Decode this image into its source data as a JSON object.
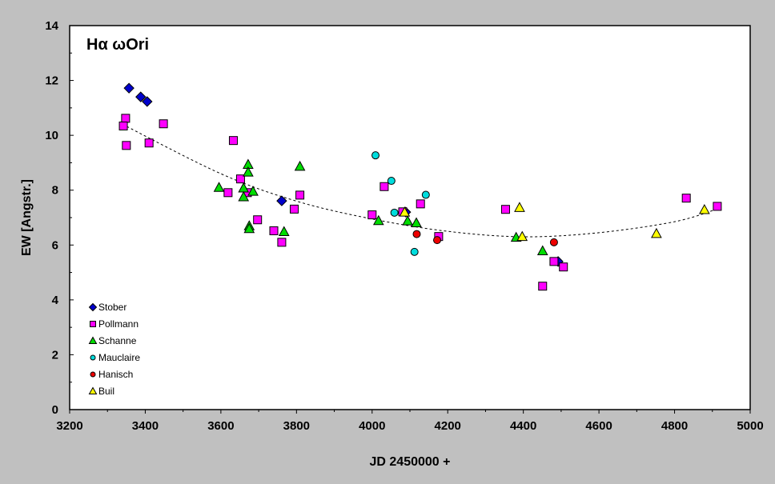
{
  "chart_data": {
    "type": "scatter",
    "title": "Hα ωOri",
    "xlabel": "JD 2450000 +",
    "ylabel": "EW [Angstr.]",
    "xlim": [
      3200,
      5000
    ],
    "ylim": [
      0,
      14
    ],
    "xticks": [
      3200,
      3400,
      3600,
      3800,
      4000,
      4200,
      4400,
      4600,
      4800,
      5000
    ],
    "yticks": [
      0,
      2,
      4,
      6,
      8,
      10,
      12,
      14
    ],
    "grid": false,
    "legend_position": "bottom-left",
    "background": "#c0c0c0",
    "plot_background": "#ffffff",
    "series": [
      {
        "name": "Stober",
        "marker": "diamond",
        "color": "#0000cc",
        "points": [
          [
            3357,
            11.72
          ],
          [
            3388,
            11.4
          ],
          [
            3405,
            11.23
          ],
          [
            3761,
            7.61
          ],
          [
            4089,
            7.2
          ],
          [
            4492,
            5.4
          ]
        ]
      },
      {
        "name": "Pollmann",
        "marker": "square",
        "color": "#ff00ff",
        "points": [
          [
            3348,
            10.62
          ],
          [
            3342,
            10.34
          ],
          [
            3350,
            9.63
          ],
          [
            3410,
            9.72
          ],
          [
            3448,
            10.42
          ],
          [
            3633,
            9.81
          ],
          [
            3652,
            8.41
          ],
          [
            3619,
            7.91
          ],
          [
            3670,
            7.91
          ],
          [
            3697,
            6.92
          ],
          [
            3740,
            6.52
          ],
          [
            3761,
            6.1
          ],
          [
            3794,
            7.31
          ],
          [
            3809,
            7.82
          ],
          [
            4000,
            7.1
          ],
          [
            4032,
            8.13
          ],
          [
            4081,
            7.21
          ],
          [
            4128,
            7.5
          ],
          [
            4176,
            6.31
          ],
          [
            4353,
            7.3
          ],
          [
            4481,
            5.4
          ],
          [
            4506,
            5.2
          ],
          [
            4451,
            4.5
          ],
          [
            4831,
            7.71
          ],
          [
            4913,
            7.41
          ]
        ]
      },
      {
        "name": "Schanne",
        "marker": "triangle",
        "color": "#00dd00",
        "points": [
          [
            3595,
            8.1
          ],
          [
            3672,
            8.94
          ],
          [
            3672,
            8.66
          ],
          [
            3660,
            8.08
          ],
          [
            3685,
            7.96
          ],
          [
            3660,
            7.76
          ],
          [
            3675,
            6.7
          ],
          [
            3675,
            6.6
          ],
          [
            3767,
            6.49
          ],
          [
            3809,
            8.87
          ],
          [
            4017,
            6.89
          ],
          [
            4094,
            6.88
          ],
          [
            4117,
            6.81
          ],
          [
            4381,
            6.28
          ],
          [
            4451,
            5.79
          ]
        ]
      },
      {
        "name": "Mauclaire",
        "marker": "circle",
        "color": "#00dddd",
        "points": [
          [
            4009,
            9.27
          ],
          [
            4051,
            8.34
          ],
          [
            4142,
            7.83
          ],
          [
            4059,
            7.18
          ],
          [
            4112,
            5.75
          ]
        ]
      },
      {
        "name": "Hanisch",
        "marker": "circle",
        "color": "#ee0000",
        "points": [
          [
            4118,
            6.4
          ],
          [
            4172,
            6.18
          ],
          [
            4481,
            6.1
          ]
        ]
      },
      {
        "name": "Buil",
        "marker": "triangle",
        "color": "#ffff00",
        "points": [
          [
            4086,
            7.2
          ],
          [
            4390,
            7.37
          ],
          [
            4397,
            6.31
          ],
          [
            4752,
            6.42
          ],
          [
            4879,
            7.29
          ]
        ]
      }
    ],
    "trendline": {
      "style": "dotted",
      "color": "#000000",
      "kind": "polynomial",
      "points": [
        [
          3340,
          10.4
        ],
        [
          3600,
          8.6
        ],
        [
          3800,
          7.6
        ],
        [
          4000,
          6.95
        ],
        [
          4200,
          6.5
        ],
        [
          4400,
          6.3
        ],
        [
          4600,
          6.45
        ],
        [
          4800,
          6.85
        ],
        [
          4910,
          7.3
        ]
      ]
    }
  }
}
